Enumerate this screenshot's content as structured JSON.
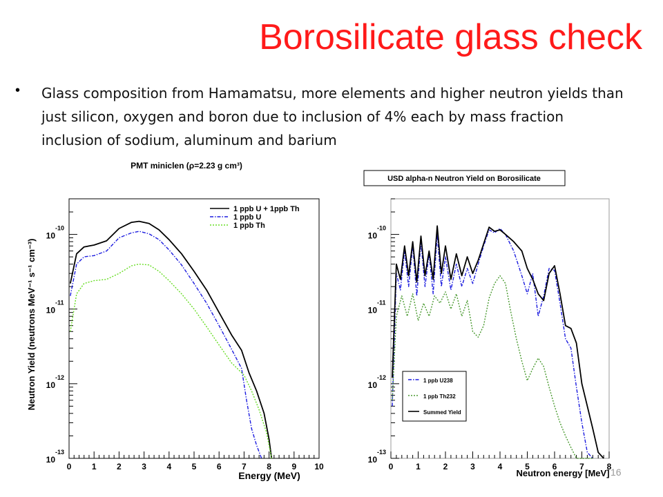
{
  "slide": {
    "title": "Borosilicate glass check",
    "bullet": "Glass composition from Hamamatsu, more elements and higher neutron yields than just silicon, oxygen and boron due to inclusion of 4% each by mass fraction inclusion of sodium, aluminum and barium",
    "page_number": "16"
  },
  "chart_data": [
    {
      "type": "line",
      "title": "PMT miniclen (ρ=2.23 g cm³)",
      "xlabel": "Energy (MeV)",
      "ylabel": "Neutron Yield (neutrons MeV⁻¹ s⁻¹ cm⁻³)",
      "xlim": [
        0,
        10
      ],
      "ylim": [
        1e-13,
        3e-10
      ],
      "yscale": "log",
      "x_ticks": [
        0,
        1,
        2,
        3,
        4,
        5,
        6,
        7,
        8,
        9,
        10
      ],
      "y_ticks": [
        {
          "value": 1e-10,
          "base": "10",
          "exp": "-10"
        },
        {
          "value": 1e-11,
          "base": "10",
          "exp": "-11"
        },
        {
          "value": 1e-12,
          "base": "10",
          "exp": "-12"
        },
        {
          "value": 1e-13,
          "base": "10",
          "exp": "-13"
        }
      ],
      "legend": "top-right",
      "series": [
        {
          "name": "1 ppb U + 1ppb Th",
          "color": "#000000",
          "dash": "",
          "x": [
            0.05,
            0.3,
            0.6,
            1.0,
            1.5,
            2.0,
            2.5,
            2.8,
            3.2,
            3.6,
            4.0,
            4.5,
            5.0,
            5.5,
            6.0,
            6.5,
            6.9,
            7.2,
            7.5,
            7.8,
            8.0,
            8.1
          ],
          "y": [
            2.2e-11,
            5.5e-11,
            6.8e-11,
            7.2e-11,
            8.2e-11,
            1.2e-10,
            1.45e-10,
            1.5e-10,
            1.4e-10,
            1.15e-10,
            8.5e-11,
            5.5e-11,
            3.2e-11,
            1.8e-11,
            9e-12,
            4.5e-12,
            2.8e-12,
            1.4e-12,
            8e-13,
            4e-13,
            1.8e-13,
            1e-13
          ]
        },
        {
          "name": "1 ppb U",
          "color": "#1a1adf",
          "dash": "5,2,1.5,2",
          "x": [
            0.05,
            0.3,
            0.6,
            1.0,
            1.5,
            2.0,
            2.5,
            2.8,
            3.2,
            3.6,
            4.0,
            4.5,
            5.0,
            5.5,
            6.0,
            6.5,
            6.9,
            7.1,
            7.3,
            7.5,
            7.7
          ],
          "y": [
            1.5e-11,
            4e-11,
            5e-11,
            5.2e-11,
            6e-11,
            9e-11,
            1.05e-10,
            1.1e-10,
            1.02e-10,
            8.5e-11,
            6.2e-11,
            3.9e-11,
            2.2e-11,
            1.2e-11,
            6e-12,
            2.9e-12,
            1.6e-12,
            6e-13,
            2.5e-13,
            1.5e-13,
            1e-13
          ]
        },
        {
          "name": "1 ppb Th",
          "color": "#66dd22",
          "dash": "2,2",
          "x": [
            0.05,
            0.3,
            0.6,
            1.0,
            1.5,
            2.0,
            2.5,
            2.8,
            3.2,
            3.6,
            4.0,
            4.5,
            5.0,
            5.5,
            6.0,
            6.5,
            7.0,
            7.3,
            7.6,
            7.9,
            8.1
          ],
          "y": [
            5e-12,
            1.6e-11,
            2.2e-11,
            2.4e-11,
            2.5e-11,
            3e-11,
            3.8e-11,
            4e-11,
            3.9e-11,
            3.2e-11,
            2.4e-11,
            1.6e-11,
            1e-11,
            5.8e-12,
            3.3e-12,
            1.9e-12,
            1.3e-12,
            8e-13,
            4.5e-13,
            2.2e-13,
            1e-13
          ]
        }
      ]
    },
    {
      "type": "line",
      "title": "USD alpha-n Neutron Yield on Borosilicate",
      "xlabel": "Neutron energy [MeV]",
      "ylabel": "",
      "xlim": [
        0,
        8
      ],
      "ylim": [
        1e-13,
        3e-10
      ],
      "yscale": "log",
      "x_ticks": [
        0,
        1,
        2,
        3,
        4,
        5,
        6,
        7,
        8
      ],
      "y_ticks": [
        {
          "value": 1e-10,
          "base": "10",
          "exp": "-10"
        },
        {
          "value": 1e-11,
          "base": "10",
          "exp": "-11"
        },
        {
          "value": 1e-12,
          "base": "10",
          "exp": "-12"
        },
        {
          "value": 1e-13,
          "base": "10",
          "exp": "-13"
        }
      ],
      "legend": "bottom-left",
      "series": [
        {
          "name": "1 ppb U238",
          "color": "#1a1adf",
          "dash": "5,2,1.5,2",
          "x": [
            0.05,
            0.2,
            0.35,
            0.5,
            0.65,
            0.8,
            0.95,
            1.1,
            1.25,
            1.4,
            1.55,
            1.7,
            1.85,
            2.0,
            2.2,
            2.4,
            2.6,
            2.8,
            3.0,
            3.2,
            3.4,
            3.6,
            3.8,
            4.0,
            4.2,
            4.5,
            4.8,
            5.0,
            5.2,
            5.4,
            5.6,
            5.8,
            6.0,
            6.2,
            6.4,
            6.6,
            6.8,
            7.0,
            7.2,
            7.4
          ],
          "y": [
            5e-13,
            3e-11,
            1.8e-11,
            6e-11,
            2e-11,
            7e-11,
            1.5e-11,
            8e-11,
            2e-11,
            5.5e-11,
            1.6e-11,
            1e-10,
            2e-11,
            5e-11,
            1.8e-11,
            4e-11,
            2e-11,
            3.5e-11,
            2.2e-11,
            4e-11,
            7e-11,
            1.15e-10,
            1.05e-10,
            1.2e-10,
            1e-10,
            6e-11,
            2.8e-11,
            1.6e-11,
            3e-11,
            8e-12,
            1.5e-11,
            3.5e-11,
            3.3e-11,
            1.2e-11,
            4e-12,
            3e-12,
            9e-13,
            3e-13,
            1.2e-13,
            1e-13
          ]
        },
        {
          "name": "1 ppb Th232",
          "color": "#4a9a30",
          "dash": "2,2",
          "x": [
            0.05,
            0.2,
            0.4,
            0.6,
            0.8,
            1.0,
            1.2,
            1.4,
            1.6,
            1.8,
            2.0,
            2.2,
            2.4,
            2.6,
            2.8,
            3.0,
            3.2,
            3.4,
            3.6,
            3.8,
            4.0,
            4.2,
            4.4,
            4.6,
            4.8,
            5.0,
            5.2,
            5.4,
            5.6,
            5.8,
            6.0,
            6.2,
            6.4,
            6.6,
            6.8,
            7.0,
            7.2,
            7.4
          ],
          "y": [
            6e-13,
            8e-12,
            1.5e-11,
            8e-12,
            1.6e-11,
            7e-12,
            1.2e-11,
            8e-12,
            1.5e-11,
            1.2e-11,
            1.7e-11,
            1e-11,
            1.6e-11,
            8e-12,
            1.3e-11,
            5e-12,
            4.2e-12,
            6e-12,
            1.4e-11,
            2.2e-11,
            2.8e-11,
            2.2e-11,
            9e-12,
            4e-12,
            2e-12,
            1.1e-12,
            1.6e-12,
            2.2e-12,
            1.7e-12,
            9e-13,
            5e-13,
            3e-13,
            2e-13,
            1.4e-13,
            1e-13,
            1e-13,
            1e-13,
            1e-13
          ]
        },
        {
          "name": "Summed Yield",
          "color": "#000000",
          "dash": "",
          "x": [
            0.05,
            0.2,
            0.35,
            0.5,
            0.65,
            0.8,
            0.95,
            1.1,
            1.25,
            1.4,
            1.55,
            1.7,
            1.85,
            2.0,
            2.2,
            2.4,
            2.6,
            2.8,
            3.0,
            3.2,
            3.4,
            3.6,
            3.8,
            4.0,
            4.2,
            4.5,
            4.8,
            5.0,
            5.2,
            5.4,
            5.6,
            5.8,
            6.0,
            6.2,
            6.4,
            6.6,
            6.8,
            7.0,
            7.2,
            7.4,
            7.6,
            7.8
          ],
          "y": [
            1.2e-12,
            4e-11,
            2.5e-11,
            7e-11,
            2.8e-11,
            8e-11,
            2.3e-11,
            9.5e-11,
            2.8e-11,
            6e-11,
            2.5e-11,
            1.3e-10,
            3e-11,
            7e-11,
            2.5e-11,
            5.5e-11,
            2.8e-11,
            5e-11,
            3e-11,
            4.5e-11,
            7.5e-11,
            1.25e-10,
            1.1e-10,
            1.15e-10,
            1e-10,
            8e-11,
            6e-11,
            3.5e-11,
            2.5e-11,
            1.6e-11,
            1.3e-11,
            3e-11,
            3.8e-11,
            1.6e-11,
            6e-12,
            5.5e-12,
            3.5e-12,
            1e-12,
            5e-13,
            2.5e-13,
            1.2e-13,
            1e-13
          ]
        }
      ]
    }
  ]
}
